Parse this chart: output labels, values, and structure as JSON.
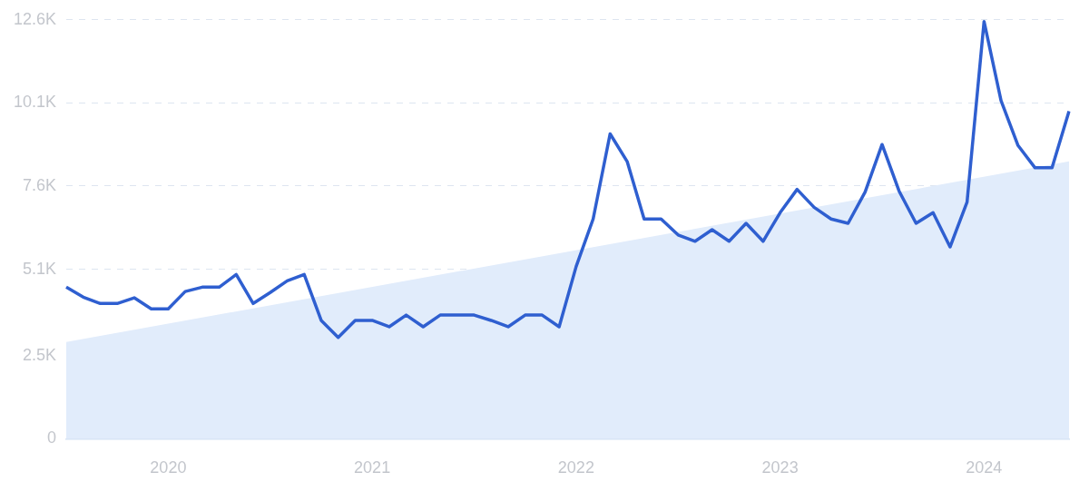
{
  "chart_data": {
    "type": "line",
    "categories": [
      null,
      null,
      null,
      null,
      null,
      null,
      "2020",
      null,
      null,
      null,
      null,
      null,
      null,
      null,
      null,
      null,
      null,
      null,
      "2021",
      null,
      null,
      null,
      null,
      null,
      null,
      null,
      null,
      null,
      null,
      null,
      "2022",
      null,
      null,
      null,
      null,
      null,
      null,
      null,
      null,
      null,
      null,
      null,
      "2023",
      null,
      null,
      null,
      null,
      null,
      null,
      null,
      null,
      null,
      null,
      null,
      "2024",
      null,
      null,
      null,
      null,
      null
    ],
    "series": [
      {
        "color": "#2f5fd0",
        "values": [
          4560,
          4260,
          4070,
          4070,
          4240,
          3910,
          3910,
          4430,
          4560,
          4560,
          4940,
          4070,
          4400,
          4750,
          4940,
          3560,
          3050,
          3560,
          3560,
          3370,
          3720,
          3370,
          3720,
          3720,
          3720,
          3560,
          3370,
          3720,
          3720,
          3370,
          5180,
          6610,
          9170,
          8340,
          6610,
          6610,
          6130,
          5940,
          6290,
          5940,
          6480,
          5940,
          6800,
          7500,
          6960,
          6610,
          6480,
          7420,
          8850,
          7450,
          6480,
          6800,
          5770,
          7120,
          12550,
          10170,
          8820,
          8150,
          8150,
          9850
        ]
      },
      {
        "type": "area",
        "color": "#e1ecfb",
        "values": [
          2910,
          null,
          null,
          null,
          null,
          null,
          null,
          null,
          null,
          null,
          null,
          null,
          null,
          null,
          null,
          null,
          null,
          null,
          null,
          null,
          null,
          null,
          null,
          null,
          null,
          null,
          null,
          null,
          null,
          null,
          null,
          null,
          null,
          null,
          null,
          null,
          null,
          null,
          null,
          null,
          null,
          null,
          null,
          null,
          null,
          null,
          null,
          null,
          null,
          null,
          null,
          null,
          null,
          null,
          null,
          null,
          null,
          null,
          null,
          8340
        ]
      }
    ],
    "ylim": [
      0,
      12600
    ],
    "yticks": [
      0,
      {
        "value": 2500,
        "label": "2.5K"
      },
      {
        "value": 5100,
        "label": "5.1K"
      },
      {
        "value": 7600,
        "label": "7.6K"
      },
      {
        "value": 10100,
        "label": "10.1K"
      },
      {
        "value": 12600,
        "label": "12.6K"
      }
    ],
    "grid": "y",
    "legend": false,
    "marker": "none",
    "line_style": "solid"
  }
}
